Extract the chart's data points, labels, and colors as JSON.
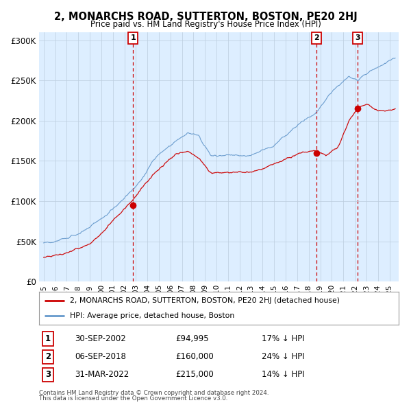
{
  "title": "2, MONARCHS ROAD, SUTTERTON, BOSTON, PE20 2HJ",
  "subtitle": "Price paid vs. HM Land Registry's House Price Index (HPI)",
  "red_label": "2, MONARCHS ROAD, SUTTERTON, BOSTON, PE20 2HJ (detached house)",
  "blue_label": "HPI: Average price, detached house, Boston",
  "footnote1": "Contains HM Land Registry data © Crown copyright and database right 2024.",
  "footnote2": "This data is licensed under the Open Government Licence v3.0.",
  "sales": [
    {
      "num": 1,
      "date": "30-SEP-2002",
      "price": 94995,
      "pct": "17% ↓ HPI",
      "x": 2002.75
    },
    {
      "num": 2,
      "date": "06-SEP-2018",
      "price": 160000,
      "pct": "24% ↓ HPI",
      "x": 2018.67
    },
    {
      "num": 3,
      "date": "31-MAR-2022",
      "price": 215000,
      "pct": "14% ↓ HPI",
      "x": 2022.25
    }
  ],
  "ylim": [
    0,
    310000
  ],
  "yticks": [
    0,
    50000,
    100000,
    150000,
    200000,
    250000,
    300000
  ],
  "ytick_labels": [
    "£0",
    "£50K",
    "£100K",
    "£150K",
    "£200K",
    "£250K",
    "£300K"
  ],
  "hpi_color": "#6699cc",
  "price_color": "#cc0000",
  "marker_color": "#cc0000",
  "bg_color": "#ffffff",
  "plot_bg_color": "#ddeeff",
  "grid_color": "#bbccdd"
}
